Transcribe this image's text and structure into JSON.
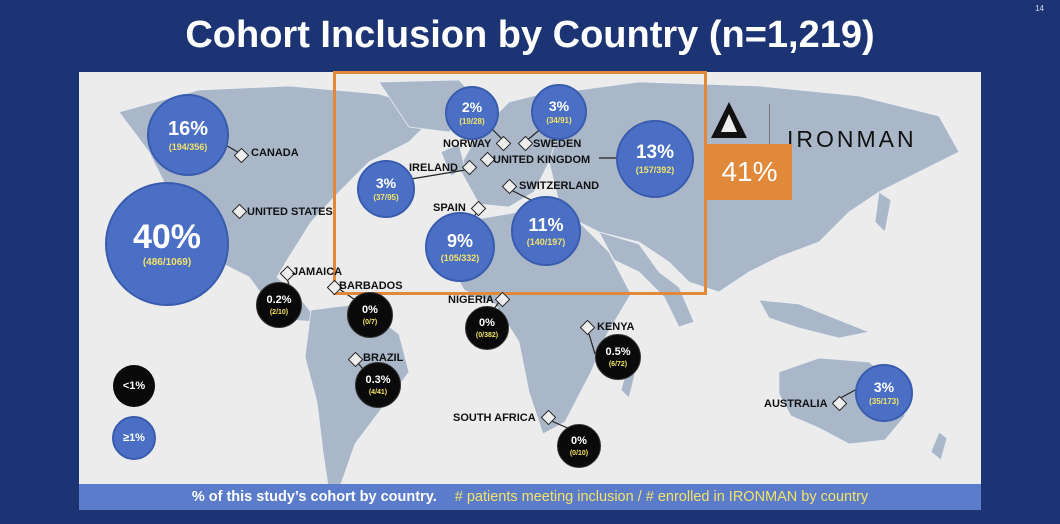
{
  "slide_number": "14",
  "title": "Cohort Inclusion by Country (n=1,219)",
  "ironman": {
    "logo_name": "IRONMAN",
    "highlight_pct": "41%",
    "highlight_color": "#e0893a"
  },
  "countries": [
    {
      "name": "CANADA",
      "pct": "16%",
      "count": "(194/356)",
      "tier": "ge1"
    },
    {
      "name": "UNITED STATES",
      "pct": "40%",
      "count": "(486/1069)",
      "tier": "ge1"
    },
    {
      "name": "JAMAICA",
      "pct": "0.2%",
      "count": "(2/10)",
      "tier": "lt1"
    },
    {
      "name": "BARBADOS",
      "pct": "0%",
      "count": "(0/7)",
      "tier": "lt1"
    },
    {
      "name": "BRAZIL",
      "pct": "0.3%",
      "count": "(4/41)",
      "tier": "lt1"
    },
    {
      "name": "NORWAY",
      "pct": "2%",
      "count": "(19/28)",
      "tier": "ge1"
    },
    {
      "name": "SWEDEN",
      "pct": "3%",
      "count": "(34/91)",
      "tier": "ge1"
    },
    {
      "name": "IRELAND",
      "pct": "3%",
      "count": "(37/95)",
      "tier": "ge1"
    },
    {
      "name": "UNITED KINGDOM",
      "pct": "13%",
      "count": "(157/392)",
      "tier": "ge1"
    },
    {
      "name": "SWITZERLAND",
      "pct": "11%",
      "count": "(140/197)",
      "tier": "ge1"
    },
    {
      "name": "SPAIN",
      "pct": "9%",
      "count": "(105/332)",
      "tier": "ge1"
    },
    {
      "name": "NIGERIA",
      "pct": "0%",
      "count": "(0/382)",
      "tier": "lt1"
    },
    {
      "name": "KENYA",
      "pct": "0.5%",
      "count": "(6/72)",
      "tier": "lt1"
    },
    {
      "name": "SOUTH AFRICA",
      "pct": "0%",
      "count": "(0/10)",
      "tier": "lt1"
    },
    {
      "name": "AUSTRALIA",
      "pct": "3%",
      "count": "(35/173)",
      "tier": "ge1"
    }
  ],
  "legend": {
    "lt1_label": "<1%",
    "ge1_label": "≥1%",
    "lt1_color": "#0a0a0a",
    "ge1_color": "#4a6fc4"
  },
  "footer": {
    "left_text": "% of this study’s cohort by country.",
    "right_text": "# patients meeting inclusion / # enrolled in IRONMAN by country"
  },
  "colors": {
    "background": "#1c3473",
    "map_land": "#a9b7c9",
    "footer_bg": "#5b7ccb",
    "count_text": "#f2e36a"
  }
}
